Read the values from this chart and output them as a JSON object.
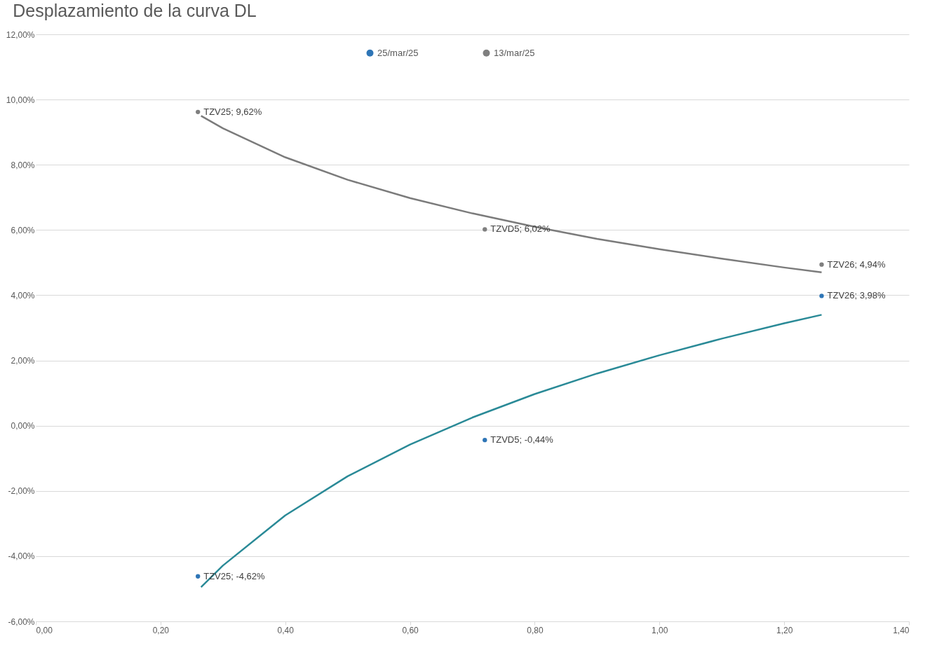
{
  "chart_data": {
    "type": "scatter",
    "title": "Desplazamiento de la curva DL",
    "xlim": [
      0,
      1.4
    ],
    "xticks": [
      {
        "value": 0,
        "label": "0,00"
      },
      {
        "value": 0.2,
        "label": "0,20"
      },
      {
        "value": 0.4,
        "label": "0,40"
      },
      {
        "value": 0.6,
        "label": "0,60"
      },
      {
        "value": 0.8,
        "label": "0,80"
      },
      {
        "value": 1,
        "label": "1,00"
      },
      {
        "value": 1.2,
        "label": "1,20"
      },
      {
        "value": 1.4,
        "label": "1,40"
      }
    ],
    "ylim": [
      -6,
      12
    ],
    "yticks": [
      {
        "value": -6,
        "label": "-6,00%"
      },
      {
        "value": -4,
        "label": "-4,00%"
      },
      {
        "value": -2,
        "label": "-2,00%"
      },
      {
        "value": 0,
        "label": "0,00%"
      },
      {
        "value": 2,
        "label": "2,00%"
      },
      {
        "value": 4,
        "label": "4,00%"
      },
      {
        "value": 6,
        "label": "6,00%"
      },
      {
        "value": 8,
        "label": "8,00%"
      },
      {
        "value": 10,
        "label": "10,00%"
      },
      {
        "value": 12,
        "label": "12,00%"
      }
    ],
    "grid": "y",
    "legend": "top",
    "marker": "circle",
    "series": [
      {
        "name": "25/mar/25",
        "color": "#2e75b6",
        "x": [
          0.26,
          0.72,
          1.26
        ],
        "values": [
          -4.62,
          -0.44,
          3.98
        ],
        "value_labels": [
          "TZV25; -4,62%",
          "TZVD5; -0,44%",
          "TZV26; 3,98%"
        ]
      },
      {
        "name": "13/mar/25",
        "color": "#7f7f7f",
        "x": [
          0.26,
          0.72,
          1.26
        ],
        "values": [
          9.62,
          6.02,
          4.94
        ],
        "value_labels": [
          "TZV25; 9,62%",
          "TZVD5; 6,02%",
          "TZV26; 4,94%"
        ]
      },
      {
        "type": "line",
        "marker": "none",
        "color": "#7b7b7b",
        "x": [
          0.265,
          0.3,
          0.4,
          0.5,
          0.6,
          0.7,
          0.8,
          0.9,
          1.0,
          1.1,
          1.2,
          1.26
        ],
        "values": [
          9.5,
          9.12,
          8.23,
          7.54,
          6.98,
          6.51,
          6.1,
          5.73,
          5.41,
          5.12,
          4.85,
          4.7
        ]
      },
      {
        "type": "line",
        "marker": "none",
        "color": "#2a8a97",
        "x": [
          0.265,
          0.3,
          0.4,
          0.5,
          0.6,
          0.7,
          0.8,
          0.9,
          1.0,
          1.1,
          1.2,
          1.26
        ],
        "values": [
          -4.95,
          -4.29,
          -2.75,
          -1.55,
          -0.58,
          0.25,
          0.97,
          1.6,
          2.16,
          2.67,
          3.14,
          3.4
        ]
      }
    ]
  }
}
